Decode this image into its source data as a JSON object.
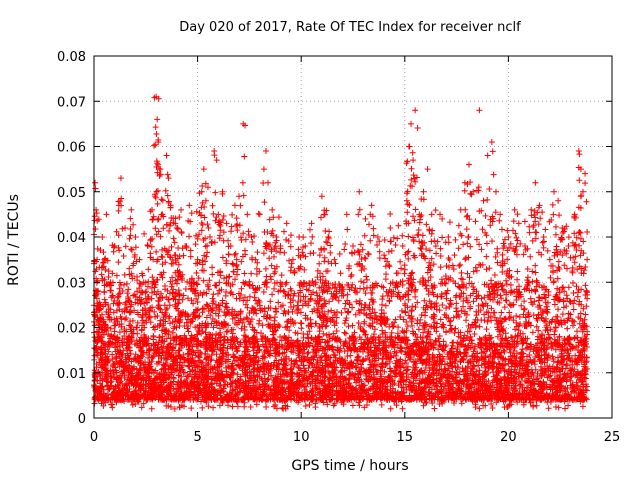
{
  "chart_data": {
    "type": "scatter",
    "title": "Day 020 of 2017, Rate Of TEC Index for receiver nclf",
    "xlabel": "GPS time / hours",
    "ylabel": "ROTI / TECUs",
    "xlim": [
      0,
      25
    ],
    "ylim": [
      0,
      0.08
    ],
    "xticks": [
      0,
      5,
      10,
      15,
      20,
      25
    ],
    "xtick_labels": [
      "0",
      "5",
      "10",
      "15",
      "20",
      "25"
    ],
    "yticks": [
      0,
      0.01,
      0.02,
      0.03,
      0.04,
      0.05,
      0.06,
      0.07,
      0.08
    ],
    "ytick_labels": [
      "0",
      "0.01",
      "0.02",
      "0.03",
      "0.04",
      "0.05",
      "0.06",
      "0.07",
      "0.08"
    ],
    "grid": true,
    "marker": "+",
    "color": "#ff0000",
    "series": [
      {
        "name": "ROTI",
        "points": [
          [
            0.05,
            0.052
          ],
          [
            0.1,
            0.046
          ],
          [
            0.15,
            0.035
          ],
          [
            0.2,
            0.028
          ],
          [
            0.3,
            0.022
          ],
          [
            0.4,
            0.04
          ],
          [
            0.5,
            0.035
          ],
          [
            0.6,
            0.045
          ],
          [
            0.8,
            0.03
          ],
          [
            1.0,
            0.038
          ],
          [
            1.2,
            0.047
          ],
          [
            1.3,
            0.053
          ],
          [
            1.5,
            0.042
          ],
          [
            1.7,
            0.033
          ],
          [
            1.8,
            0.046
          ],
          [
            2.0,
            0.04
          ],
          [
            2.2,
            0.035
          ],
          [
            2.4,
            0.03
          ],
          [
            2.6,
            0.038
          ],
          [
            2.8,
            0.046
          ],
          [
            3.0,
            0.071
          ],
          [
            3.05,
            0.066
          ],
          [
            3.1,
            0.061
          ],
          [
            3.2,
            0.055
          ],
          [
            3.3,
            0.045
          ],
          [
            3.5,
            0.058
          ],
          [
            3.6,
            0.053
          ],
          [
            3.7,
            0.047
          ],
          [
            3.9,
            0.036
          ],
          [
            4.0,
            0.042
          ],
          [
            4.2,
            0.046
          ],
          [
            4.4,
            0.038
          ],
          [
            4.6,
            0.047
          ],
          [
            4.8,
            0.03
          ],
          [
            5.0,
            0.035
          ],
          [
            5.2,
            0.05
          ],
          [
            5.3,
            0.055
          ],
          [
            5.4,
            0.048
          ],
          [
            5.5,
            0.051
          ],
          [
            5.6,
            0.04
          ],
          [
            5.8,
            0.059
          ],
          [
            6.0,
            0.045
          ],
          [
            6.2,
            0.05
          ],
          [
            6.4,
            0.043
          ],
          [
            6.6,
            0.038
          ],
          [
            6.8,
            0.047
          ],
          [
            7.0,
            0.049
          ],
          [
            7.2,
            0.065
          ],
          [
            7.4,
            0.045
          ],
          [
            7.6,
            0.04
          ],
          [
            7.8,
            0.035
          ],
          [
            8.0,
            0.045
          ],
          [
            8.2,
            0.055
          ],
          [
            8.3,
            0.059
          ],
          [
            8.4,
            0.052
          ],
          [
            8.6,
            0.046
          ],
          [
            8.8,
            0.04
          ],
          [
            9.0,
            0.038
          ],
          [
            9.3,
            0.043
          ],
          [
            9.6,
            0.035
          ],
          [
            9.9,
            0.04
          ],
          [
            10.2,
            0.038
          ],
          [
            10.5,
            0.043
          ],
          [
            10.7,
            0.03
          ],
          [
            10.9,
            0.036
          ],
          [
            11.0,
            0.049
          ],
          [
            11.1,
            0.045
          ],
          [
            11.3,
            0.04
          ],
          [
            11.6,
            0.035
          ],
          [
            11.9,
            0.032
          ],
          [
            12.2,
            0.045
          ],
          [
            12.5,
            0.038
          ],
          [
            12.8,
            0.05
          ],
          [
            13.1,
            0.044
          ],
          [
            13.4,
            0.047
          ],
          [
            13.7,
            0.04
          ],
          [
            14.0,
            0.036
          ],
          [
            14.3,
            0.042
          ],
          [
            14.6,
            0.032
          ],
          [
            14.9,
            0.038
          ],
          [
            15.1,
            0.048
          ],
          [
            15.2,
            0.06
          ],
          [
            15.3,
            0.065
          ],
          [
            15.4,
            0.057
          ],
          [
            15.5,
            0.068
          ],
          [
            15.7,
            0.045
          ],
          [
            15.9,
            0.05
          ],
          [
            16.1,
            0.055
          ],
          [
            16.3,
            0.045
          ],
          [
            16.5,
            0.038
          ],
          [
            16.8,
            0.044
          ],
          [
            17.1,
            0.04
          ],
          [
            17.4,
            0.036
          ],
          [
            17.7,
            0.046
          ],
          [
            17.9,
            0.052
          ],
          [
            18.1,
            0.056
          ],
          [
            18.3,
            0.05
          ],
          [
            18.6,
            0.068
          ],
          [
            18.8,
            0.048
          ],
          [
            19.0,
            0.058
          ],
          [
            19.2,
            0.061
          ],
          [
            19.4,
            0.05
          ],
          [
            19.6,
            0.045
          ],
          [
            19.8,
            0.038
          ],
          [
            20.0,
            0.04
          ],
          [
            20.3,
            0.046
          ],
          [
            20.5,
            0.043
          ],
          [
            20.8,
            0.038
          ],
          [
            21.1,
            0.046
          ],
          [
            21.3,
            0.052
          ],
          [
            21.5,
            0.047
          ],
          [
            21.7,
            0.04
          ],
          [
            22.0,
            0.035
          ],
          [
            22.2,
            0.05
          ],
          [
            22.4,
            0.048
          ],
          [
            22.6,
            0.042
          ],
          [
            22.9,
            0.038
          ],
          [
            23.2,
            0.045
          ],
          [
            23.4,
            0.059
          ],
          [
            23.5,
            0.055
          ],
          [
            23.6,
            0.05
          ],
          [
            23.7,
            0.054
          ],
          [
            23.8,
            0.035
          ]
        ],
        "baseline_band": [
          0.002,
          0.03
        ],
        "dense_sample_count": 6000
      }
    ]
  }
}
